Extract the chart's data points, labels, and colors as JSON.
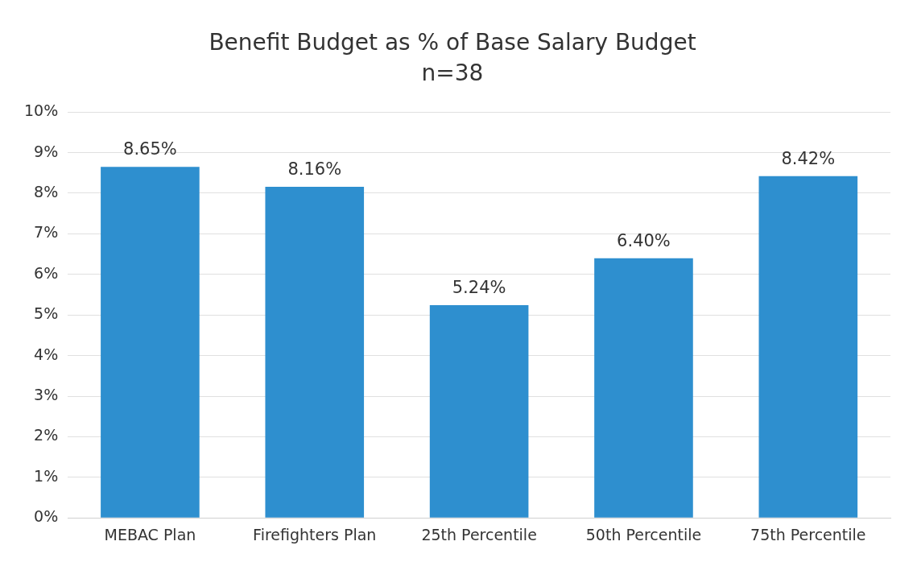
{
  "chart_data": {
    "type": "bar",
    "title": "Benefit Budget as % of Base Salary Budget",
    "subtitle": "n=38",
    "categories": [
      "MEBAC Plan",
      "Firefighters Plan",
      "25th Percentile",
      "50th Percentile",
      "75th Percentile"
    ],
    "values": [
      8.65,
      8.16,
      5.24,
      6.4,
      8.42
    ],
    "value_labels": [
      "8.65%",
      "8.16%",
      "5.24%",
      "6.40%",
      "8.42%"
    ],
    "color": "#2e8fcf",
    "ylim": [
      0,
      10
    ],
    "yticks": [
      {
        "value": 0,
        "label": "0%"
      },
      {
        "value": 1,
        "label": "1%"
      },
      {
        "value": 2,
        "label": "2%"
      },
      {
        "value": 3,
        "label": "3%"
      },
      {
        "value": 4,
        "label": "4%"
      },
      {
        "value": 5,
        "label": "5%"
      },
      {
        "value": 6,
        "label": "6%"
      },
      {
        "value": 7,
        "label": "7%"
      },
      {
        "value": 8,
        "label": "8%"
      },
      {
        "value": 9,
        "label": "9%"
      },
      {
        "value": 10,
        "label": "10%"
      }
    ],
    "grid": "y",
    "legend": false
  }
}
